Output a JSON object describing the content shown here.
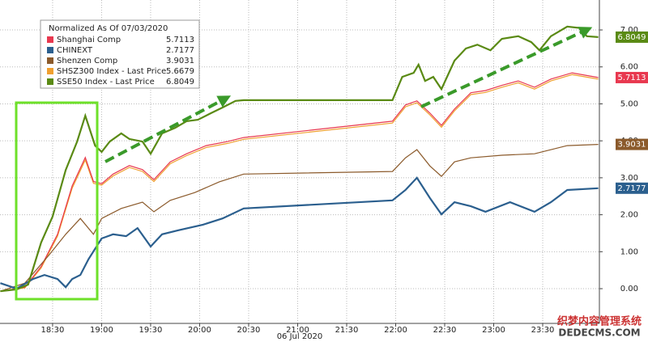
{
  "chart_data": {
    "type": "line",
    "legend_title": "Normalized As Of 07/03/2020",
    "x_axis_label": "06 Jul 2020",
    "xlim": [
      -2.2,
      364.7
    ],
    "xticks": [
      {
        "value": 30,
        "label": "18:30"
      },
      {
        "value": 60,
        "label": "19:00"
      },
      {
        "value": 90,
        "label": "19:30"
      },
      {
        "value": 120,
        "label": "20:00"
      },
      {
        "value": 150,
        "label": "20:30"
      },
      {
        "value": 180,
        "label": "21:00"
      },
      {
        "value": 210,
        "label": "21:30"
      },
      {
        "value": 240,
        "label": "22:00"
      },
      {
        "value": 270,
        "label": "22:30"
      },
      {
        "value": 300,
        "label": "23:00"
      },
      {
        "value": 330,
        "label": "23:30"
      }
    ],
    "ylim": [
      -0.94,
      7.81
    ],
    "yticks": [
      {
        "value": 0,
        "label": "0.00"
      },
      {
        "value": 1,
        "label": "1.00"
      },
      {
        "value": 2,
        "label": "2.00"
      },
      {
        "value": 3,
        "label": "3.00"
      },
      {
        "value": 4,
        "label": "4.00"
      },
      {
        "value": 5,
        "label": "5.00"
      },
      {
        "value": 6,
        "label": "6.00"
      },
      {
        "value": 7,
        "label": "7.00"
      }
    ],
    "grid": true,
    "series": [
      {
        "name": "Shanghai Comp",
        "color": "#e8384f",
        "legend_value": 5.7113,
        "end_tag": true,
        "x": [
          -2,
          13,
          23,
          33,
          42,
          50,
          55,
          60,
          67,
          77,
          85,
          92,
          102,
          112,
          124,
          137,
          147,
          238,
          246,
          253,
          261,
          268,
          276,
          286,
          295,
          305,
          315,
          325,
          335,
          348,
          364
        ],
        "values": [
          -0.07,
          0.04,
          0.6,
          1.47,
          2.78,
          3.55,
          2.9,
          2.84,
          3.1,
          3.33,
          3.22,
          2.95,
          3.43,
          3.65,
          3.87,
          3.98,
          4.09,
          4.53,
          4.97,
          5.08,
          4.75,
          4.42,
          4.86,
          5.3,
          5.36,
          5.5,
          5.62,
          5.45,
          5.67,
          5.84,
          5.7113
        ]
      },
      {
        "name": "CHINEXT",
        "color": "#2b5f8e",
        "legend_value": 2.7177,
        "end_tag": true,
        "x": [
          -2,
          8,
          18,
          25,
          33,
          38,
          42,
          47,
          52,
          60,
          67,
          75,
          82,
          90,
          97,
          107,
          122,
          134,
          147,
          238,
          246,
          253,
          261,
          268,
          276,
          286,
          295,
          310,
          325,
          335,
          345,
          364
        ],
        "values": [
          0.15,
          0.0,
          0.26,
          0.37,
          0.26,
          0.04,
          0.26,
          0.37,
          0.8,
          1.36,
          1.47,
          1.42,
          1.64,
          1.14,
          1.47,
          1.58,
          1.73,
          1.9,
          2.17,
          2.39,
          2.67,
          3.0,
          2.45,
          2.01,
          2.34,
          2.23,
          2.08,
          2.34,
          2.08,
          2.34,
          2.67,
          2.7177
        ]
      },
      {
        "name": "Shenzen Comp",
        "color": "#8b5a2b",
        "legend_value": 3.9031,
        "end_tag": true,
        "x": [
          -2,
          13,
          28,
          38,
          47,
          55,
          60,
          72,
          85,
          92,
          102,
          117,
          132,
          147,
          238,
          246,
          253,
          261,
          268,
          276,
          286,
          305,
          325,
          345,
          364
        ],
        "values": [
          -0.07,
          0.15,
          0.92,
          1.47,
          1.9,
          1.47,
          1.9,
          2.17,
          2.34,
          2.08,
          2.39,
          2.6,
          2.89,
          3.1,
          3.17,
          3.54,
          3.76,
          3.32,
          3.04,
          3.43,
          3.54,
          3.61,
          3.65,
          3.87,
          3.9031
        ]
      },
      {
        "name": "SHSZ300 Index - Last Price",
        "color": "#f0a030",
        "legend_value": 5.6679,
        "end_tag": false,
        "x": [
          -2,
          13,
          23,
          33,
          42,
          50,
          55,
          60,
          67,
          77,
          85,
          92,
          102,
          112,
          124,
          137,
          147,
          238,
          246,
          253,
          261,
          268,
          276,
          286,
          295,
          305,
          315,
          325,
          335,
          348,
          364
        ],
        "values": [
          -0.07,
          0.02,
          0.56,
          1.42,
          2.72,
          3.48,
          2.85,
          2.8,
          3.05,
          3.28,
          3.17,
          2.9,
          3.38,
          3.6,
          3.82,
          3.93,
          4.04,
          4.48,
          4.92,
          5.03,
          4.7,
          4.37,
          4.81,
          5.25,
          5.31,
          5.45,
          5.57,
          5.4,
          5.62,
          5.79,
          5.6679
        ]
      },
      {
        "name": "SSE50 Index - Last Price",
        "color": "#5a8a14",
        "legend_value": 6.8049,
        "end_tag": true,
        "x": [
          -2,
          8,
          15,
          23,
          30,
          38,
          45,
          50,
          56,
          60,
          65,
          72,
          77,
          85,
          90,
          97,
          105,
          112,
          119,
          127,
          134,
          142,
          147,
          238,
          244,
          251,
          254,
          258,
          263,
          268,
          276,
          283,
          290,
          298,
          305,
          315,
          323,
          328,
          335,
          345,
          353,
          357,
          364
        ],
        "values": [
          -0.07,
          -0.02,
          0.11,
          1.25,
          1.95,
          3.21,
          3.98,
          4.68,
          3.87,
          3.7,
          3.98,
          4.2,
          4.05,
          3.98,
          3.65,
          4.2,
          4.35,
          4.53,
          4.57,
          4.75,
          4.9,
          5.08,
          5.1,
          5.1,
          5.73,
          5.84,
          6.06,
          5.62,
          5.73,
          5.4,
          6.17,
          6.5,
          6.6,
          6.45,
          6.76,
          6.83,
          6.67,
          6.45,
          6.83,
          7.09,
          7.05,
          6.83,
          6.8049
        ]
      }
    ],
    "watermark": [
      "织梦内容管理系统",
      "DEDECMS.COM"
    ]
  }
}
